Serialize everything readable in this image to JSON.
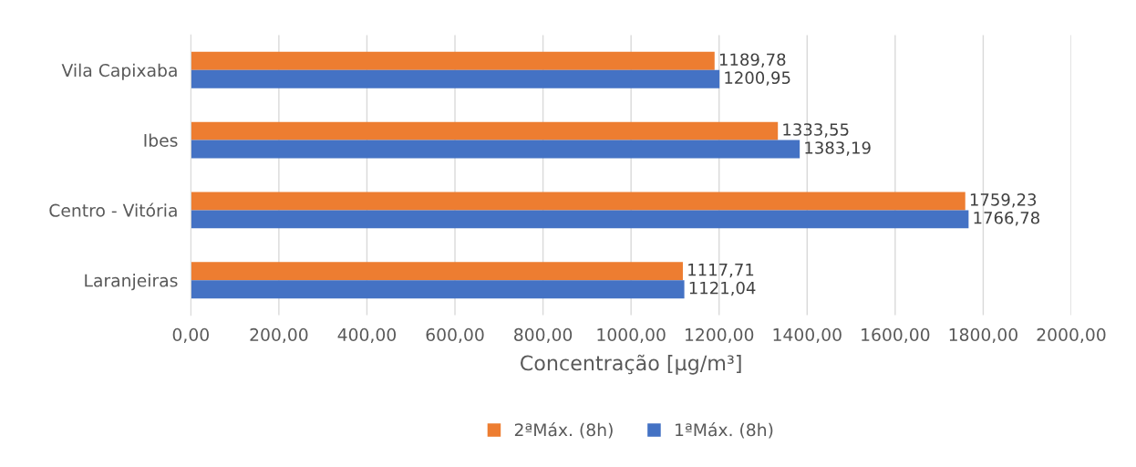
{
  "chart_data": {
    "type": "bar",
    "orientation": "horizontal",
    "xlabel": "Concentração [µg/m³]",
    "categories": [
      "Vila Capixaba",
      "Ibes",
      "Centro - Vitória",
      "Laranjeiras"
    ],
    "series": [
      {
        "name": "2ªMáx. (8h)",
        "color": "#ed7d31",
        "values": [
          1189.78,
          1333.55,
          1759.23,
          1117.71
        ],
        "value_labels": [
          "1189,78",
          "1333,55",
          "1759,23",
          "1117,71"
        ]
      },
      {
        "name": "1ªMáx. (8h)",
        "color": "#4472c4",
        "values": [
          1200.95,
          1383.19,
          1766.78,
          1121.04
        ],
        "value_labels": [
          "1200,95",
          "1383,19",
          "1766,78",
          "1121,04"
        ]
      }
    ],
    "xlim": [
      0,
      2000
    ],
    "xticks": [
      {
        "value": 0,
        "label": "0,00"
      },
      {
        "value": 200,
        "label": "200,00"
      },
      {
        "value": 400,
        "label": "400,00"
      },
      {
        "value": 600,
        "label": "600,00"
      },
      {
        "value": 800,
        "label": "800,00"
      },
      {
        "value": 1000,
        "label": "1000,00"
      },
      {
        "value": 1200,
        "label": "1200,00"
      },
      {
        "value": 1400,
        "label": "1400,00"
      },
      {
        "value": 1600,
        "label": "1600,00"
      },
      {
        "value": 1800,
        "label": "1800,00"
      },
      {
        "value": 2000,
        "label": "2000,00"
      }
    ],
    "grid": "x",
    "legend": "bottom"
  }
}
